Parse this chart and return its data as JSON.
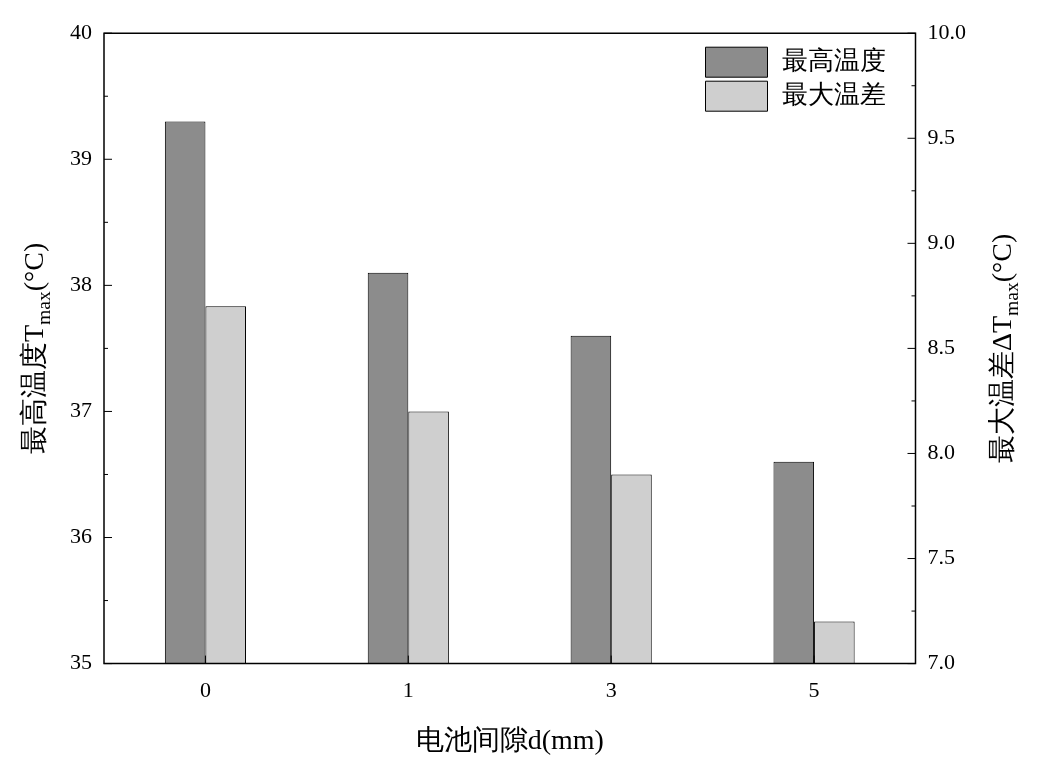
{
  "chart_data": {
    "type": "bar",
    "xlabel": "电池间隙d(mm)",
    "ylabel": "最高温度T$_{max}$(°C)",
    "y2label": "最大温差ΔT$_{max}$(°C)",
    "categories": [
      "0",
      "1",
      "3",
      "5"
    ],
    "series": [
      {
        "name": "最高温度",
        "color": "#8c8c8c",
        "values": [
          39.3,
          38.1,
          37.6,
          36.6
        ]
      },
      {
        "name": "最大温差",
        "color": "#cfcfcf",
        "values": [
          8.7,
          8.2,
          7.9,
          7.2
        ],
        "axis": "y2"
      }
    ],
    "ylim": [
      35,
      40
    ],
    "yticks": [
      35,
      36,
      37,
      38,
      39,
      40
    ],
    "y2lim": [
      7,
      10
    ],
    "y2ticks": [
      {
        "value": 7,
        "label": "7.0"
      },
      {
        "value": 7.5,
        "label": "7.5"
      },
      {
        "value": 8,
        "label": "8.0"
      },
      {
        "value": 8.5,
        "label": "8.5"
      },
      {
        "value": 9,
        "label": "9.0"
      },
      {
        "value": 9.5,
        "label": "9.5"
      },
      {
        "value": 10,
        "label": "10.0"
      }
    ],
    "legend": "top right",
    "grid": false
  }
}
